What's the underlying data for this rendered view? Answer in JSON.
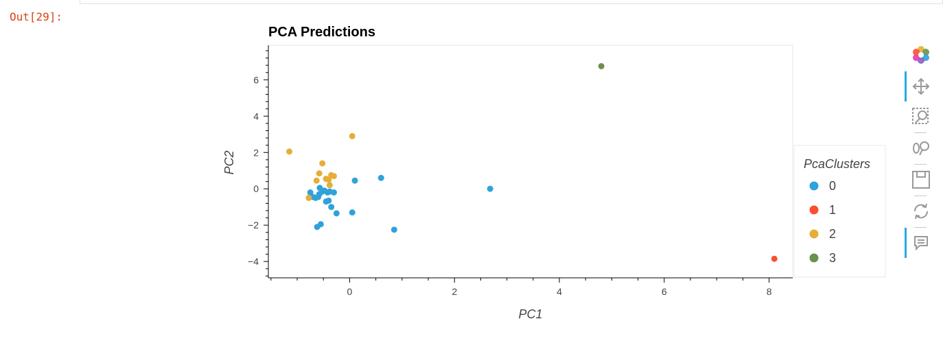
{
  "cell": {
    "out_label": "Out[29]:"
  },
  "chart_data": {
    "type": "scatter",
    "title": "PCA Predictions",
    "xlabel": "PC1",
    "ylabel": "PC2",
    "xlim": [
      -1.55,
      8.45
    ],
    "ylim": [
      -4.9,
      7.9
    ],
    "xticks": [
      0,
      2,
      4,
      6,
      8
    ],
    "yticks": [
      -4,
      -2,
      0,
      2,
      4,
      6
    ],
    "xtick_labels": [
      "0",
      "2",
      "4",
      "6",
      "8"
    ],
    "ytick_labels": [
      "−4",
      "−2",
      "0",
      "2",
      "4",
      "6"
    ],
    "grid": false,
    "legend": {
      "title": "PcaClusters",
      "placement": "right",
      "entries": [
        {
          "label": "0",
          "color": "#30a2da"
        },
        {
          "label": "1",
          "color": "#fc4f30"
        },
        {
          "label": "2",
          "color": "#e5ae38"
        },
        {
          "label": "3",
          "color": "#6d904f"
        }
      ]
    },
    "series": [
      {
        "name": "0",
        "color": "#30a2da",
        "points": [
          [
            -0.75,
            -0.2
          ],
          [
            -0.7,
            -0.45
          ],
          [
            -0.65,
            -0.5
          ],
          [
            -0.6,
            -0.45
          ],
          [
            -0.58,
            -0.3
          ],
          [
            -0.57,
            0.05
          ],
          [
            -0.52,
            -0.15
          ],
          [
            -0.48,
            -0.1
          ],
          [
            -0.45,
            -0.7
          ],
          [
            -0.42,
            -0.2
          ],
          [
            -0.4,
            -0.65
          ],
          [
            -0.38,
            -0.15
          ],
          [
            -0.35,
            -1.0
          ],
          [
            -0.3,
            -0.2
          ],
          [
            -0.25,
            -1.35
          ],
          [
            -0.55,
            -1.95
          ],
          [
            -0.62,
            -2.1
          ],
          [
            0.05,
            -1.3
          ],
          [
            0.1,
            0.45
          ],
          [
            0.6,
            0.6
          ],
          [
            0.85,
            -2.25
          ],
          [
            2.68,
            0.0
          ]
        ]
      },
      {
        "name": "1",
        "color": "#fc4f30",
        "points": [
          [
            8.1,
            -3.85
          ]
        ]
      },
      {
        "name": "2",
        "color": "#e5ae38",
        "points": [
          [
            -1.15,
            2.05
          ],
          [
            -0.78,
            -0.5
          ],
          [
            -0.63,
            0.45
          ],
          [
            -0.58,
            0.85
          ],
          [
            -0.52,
            1.4
          ],
          [
            -0.45,
            0.55
          ],
          [
            -0.4,
            0.5
          ],
          [
            -0.38,
            0.2
          ],
          [
            -0.35,
            0.75
          ],
          [
            -0.3,
            0.7
          ],
          [
            0.05,
            2.9
          ]
        ]
      },
      {
        "name": "3",
        "color": "#6d904f",
        "points": [
          [
            4.8,
            6.75
          ]
        ]
      }
    ]
  },
  "toolbar": {
    "items": [
      {
        "name": "bokeh-logo-icon"
      },
      {
        "name": "pan-tool-icon"
      },
      {
        "name": "box-zoom-tool-icon"
      },
      {
        "name": "wheel-zoom-tool-icon"
      },
      {
        "name": "save-tool-icon"
      },
      {
        "name": "reset-tool-icon"
      },
      {
        "name": "hover-tool-icon"
      }
    ]
  }
}
